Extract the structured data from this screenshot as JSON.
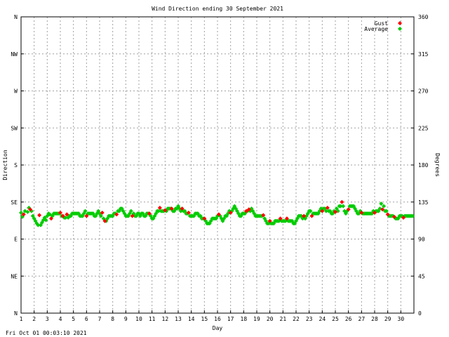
{
  "chart_data": {
    "type": "scatter",
    "title": "Wind Direction ending 30 September 2021",
    "xlabel": "Day",
    "ylabel_left": "Direction",
    "ylabel_right": "Degrees",
    "timestamp": "Fri Oct 01 00:03:10 2021",
    "xlim": [
      1,
      31
    ],
    "ylim": [
      0,
      360
    ],
    "x_ticks": [
      "1",
      "2",
      "3",
      "4",
      "5",
      "6",
      "7",
      "8",
      "9",
      "10",
      "11",
      "12",
      "13",
      "14",
      "15",
      "16",
      "17",
      "18",
      "19",
      "20",
      "21",
      "22",
      "23",
      "24",
      "25",
      "26",
      "27",
      "28",
      "29",
      "30"
    ],
    "y_ticks_left": [
      {
        "label": "N",
        "value": 0
      },
      {
        "label": "NE",
        "value": 45
      },
      {
        "label": "E",
        "value": 90
      },
      {
        "label": "SE",
        "value": 135
      },
      {
        "label": "S",
        "value": 180
      },
      {
        "label": "SW",
        "value": 225
      },
      {
        "label": "W",
        "value": 270
      },
      {
        "label": "NW",
        "value": 315
      },
      {
        "label": "N",
        "value": 360
      }
    ],
    "y_ticks_right": [
      {
        "label": "0",
        "value": 0
      },
      {
        "label": "45",
        "value": 45
      },
      {
        "label": "90",
        "value": 90
      },
      {
        "label": "135",
        "value": 135
      },
      {
        "label": "180",
        "value": 180
      },
      {
        "label": "225",
        "value": 225
      },
      {
        "label": "270",
        "value": 270
      },
      {
        "label": "315",
        "value": 315
      },
      {
        "label": "360",
        "value": 360
      }
    ],
    "grid": true,
    "legend_position": "top-right",
    "series": [
      {
        "name": "Gust",
        "color": "#ff0000",
        "points": [
          [
            1.2,
            120
          ],
          [
            1.7,
            126
          ],
          [
            2.4,
            119
          ],
          [
            3.3,
            115
          ],
          [
            4.0,
            122
          ],
          [
            4.2,
            118
          ],
          [
            4.5,
            120
          ],
          [
            6.0,
            118
          ],
          [
            7.2,
            122
          ],
          [
            7.4,
            112
          ],
          [
            8.3,
            120
          ],
          [
            9.5,
            118
          ],
          [
            10.8,
            121
          ],
          [
            11.6,
            128
          ],
          [
            12.0,
            125
          ],
          [
            12.5,
            127
          ],
          [
            13.3,
            127
          ],
          [
            13.8,
            122
          ],
          [
            15.0,
            115
          ],
          [
            16.1,
            120
          ],
          [
            17.0,
            122
          ],
          [
            18.2,
            124
          ],
          [
            18.4,
            126
          ],
          [
            19.5,
            119
          ],
          [
            20.0,
            112
          ],
          [
            20.8,
            115
          ],
          [
            21.3,
            115
          ],
          [
            22.6,
            118
          ],
          [
            23.2,
            118
          ],
          [
            24.0,
            124
          ],
          [
            24.4,
            128
          ],
          [
            25.0,
            123
          ],
          [
            25.5,
            135
          ],
          [
            26.0,
            126
          ],
          [
            27.0,
            122
          ],
          [
            28.0,
            122
          ],
          [
            28.6,
            126
          ],
          [
            29.0,
            120
          ],
          [
            29.5,
            117
          ],
          [
            30.2,
            116
          ]
        ]
      },
      {
        "name": "Average",
        "color": "#00cc00",
        "points": [
          [
            1.0,
            122
          ],
          [
            1.1,
            117
          ],
          [
            1.3,
            124
          ],
          [
            1.5,
            123
          ],
          [
            1.6,
            128
          ],
          [
            1.8,
            124
          ],
          [
            1.9,
            118
          ],
          [
            2.0,
            115
          ],
          [
            2.1,
            112
          ],
          [
            2.2,
            109
          ],
          [
            2.3,
            107
          ],
          [
            2.5,
            107
          ],
          [
            2.6,
            110
          ],
          [
            2.7,
            113
          ],
          [
            2.8,
            116
          ],
          [
            2.9,
            113
          ],
          [
            3.0,
            118
          ],
          [
            3.1,
            121
          ],
          [
            3.2,
            120
          ],
          [
            3.4,
            118
          ],
          [
            3.5,
            121
          ],
          [
            3.6,
            121
          ],
          [
            3.7,
            121
          ],
          [
            3.8,
            121
          ],
          [
            3.9,
            121
          ],
          [
            4.1,
            118
          ],
          [
            4.3,
            116
          ],
          [
            4.4,
            116
          ],
          [
            4.6,
            116
          ],
          [
            4.7,
            118
          ],
          [
            4.8,
            118
          ],
          [
            4.9,
            121
          ],
          [
            5.0,
            121
          ],
          [
            5.1,
            121
          ],
          [
            5.2,
            121
          ],
          [
            5.3,
            121
          ],
          [
            5.4,
            121
          ],
          [
            5.5,
            118
          ],
          [
            5.6,
            118
          ],
          [
            5.7,
            118
          ],
          [
            5.8,
            121
          ],
          [
            5.9,
            124
          ],
          [
            6.1,
            121
          ],
          [
            6.2,
            121
          ],
          [
            6.3,
            121
          ],
          [
            6.4,
            121
          ],
          [
            6.5,
            121
          ],
          [
            6.6,
            118
          ],
          [
            6.7,
            118
          ],
          [
            6.8,
            121
          ],
          [
            6.9,
            124
          ],
          [
            7.0,
            121
          ],
          [
            7.1,
            118
          ],
          [
            7.3,
            115
          ],
          [
            7.5,
            112
          ],
          [
            7.6,
            115
          ],
          [
            7.7,
            118
          ],
          [
            7.8,
            118
          ],
          [
            7.9,
            118
          ],
          [
            8.0,
            118
          ],
          [
            8.1,
            121
          ],
          [
            8.2,
            121
          ],
          [
            8.4,
            124
          ],
          [
            8.5,
            124
          ],
          [
            8.6,
            127
          ],
          [
            8.7,
            127
          ],
          [
            8.8,
            124
          ],
          [
            8.9,
            121
          ],
          [
            9.0,
            118
          ],
          [
            9.1,
            118
          ],
          [
            9.2,
            118
          ],
          [
            9.3,
            121
          ],
          [
            9.4,
            124
          ],
          [
            9.6,
            121
          ],
          [
            9.7,
            118
          ],
          [
            9.8,
            118
          ],
          [
            9.9,
            121
          ],
          [
            10.0,
            121
          ],
          [
            10.1,
            118
          ],
          [
            10.2,
            121
          ],
          [
            10.3,
            121
          ],
          [
            10.4,
            118
          ],
          [
            10.5,
            118
          ],
          [
            10.6,
            121
          ],
          [
            10.7,
            121
          ],
          [
            10.9,
            118
          ],
          [
            11.0,
            115
          ],
          [
            11.1,
            115
          ],
          [
            11.2,
            118
          ],
          [
            11.3,
            121
          ],
          [
            11.4,
            124
          ],
          [
            11.5,
            124
          ],
          [
            11.7,
            124
          ],
          [
            11.8,
            124
          ],
          [
            11.9,
            124
          ],
          [
            12.1,
            124
          ],
          [
            12.2,
            127
          ],
          [
            12.3,
            127
          ],
          [
            12.4,
            127
          ],
          [
            12.6,
            124
          ],
          [
            12.7,
            124
          ],
          [
            12.8,
            127
          ],
          [
            12.9,
            127
          ],
          [
            13.0,
            130
          ],
          [
            13.1,
            127
          ],
          [
            13.2,
            124
          ],
          [
            13.4,
            124
          ],
          [
            13.5,
            124
          ],
          [
            13.6,
            121
          ],
          [
            13.7,
            121
          ],
          [
            13.9,
            118
          ],
          [
            14.0,
            118
          ],
          [
            14.1,
            118
          ],
          [
            14.2,
            118
          ],
          [
            14.3,
            121
          ],
          [
            14.4,
            121
          ],
          [
            14.5,
            121
          ],
          [
            14.6,
            118
          ],
          [
            14.7,
            118
          ],
          [
            14.8,
            115
          ],
          [
            14.9,
            115
          ],
          [
            15.1,
            112
          ],
          [
            15.2,
            109
          ],
          [
            15.3,
            109
          ],
          [
            15.4,
            109
          ],
          [
            15.5,
            112
          ],
          [
            15.6,
            115
          ],
          [
            15.7,
            115
          ],
          [
            15.8,
            115
          ],
          [
            15.9,
            115
          ],
          [
            16.0,
            118
          ],
          [
            16.2,
            118
          ],
          [
            16.3,
            115
          ],
          [
            16.4,
            112
          ],
          [
            16.5,
            115
          ],
          [
            16.6,
            118
          ],
          [
            16.7,
            118
          ],
          [
            16.8,
            121
          ],
          [
            16.9,
            124
          ],
          [
            17.1,
            124
          ],
          [
            17.2,
            127
          ],
          [
            17.3,
            130
          ],
          [
            17.4,
            127
          ],
          [
            17.5,
            124
          ],
          [
            17.6,
            121
          ],
          [
            17.7,
            118
          ],
          [
            17.8,
            118
          ],
          [
            17.9,
            121
          ],
          [
            18.0,
            121
          ],
          [
            18.1,
            121
          ],
          [
            18.3,
            124
          ],
          [
            18.5,
            124
          ],
          [
            18.6,
            127
          ],
          [
            18.7,
            124
          ],
          [
            18.8,
            121
          ],
          [
            18.9,
            118
          ],
          [
            19.0,
            118
          ],
          [
            19.1,
            118
          ],
          [
            19.2,
            118
          ],
          [
            19.3,
            118
          ],
          [
            19.4,
            118
          ],
          [
            19.6,
            115
          ],
          [
            19.7,
            112
          ],
          [
            19.8,
            109
          ],
          [
            19.9,
            109
          ],
          [
            20.1,
            109
          ],
          [
            20.2,
            109
          ],
          [
            20.3,
            109
          ],
          [
            20.4,
            112
          ],
          [
            20.5,
            112
          ],
          [
            20.6,
            112
          ],
          [
            20.7,
            112
          ],
          [
            20.9,
            112
          ],
          [
            21.0,
            112
          ],
          [
            21.1,
            112
          ],
          [
            21.2,
            112
          ],
          [
            21.4,
            112
          ],
          [
            21.5,
            112
          ],
          [
            21.6,
            112
          ],
          [
            21.7,
            112
          ],
          [
            21.8,
            109
          ],
          [
            21.9,
            109
          ],
          [
            22.0,
            112
          ],
          [
            22.1,
            115
          ],
          [
            22.2,
            118
          ],
          [
            22.3,
            118
          ],
          [
            22.4,
            118
          ],
          [
            22.5,
            115
          ],
          [
            22.7,
            115
          ],
          [
            22.8,
            118
          ],
          [
            22.9,
            121
          ],
          [
            23.0,
            124
          ],
          [
            23.1,
            124
          ],
          [
            23.3,
            121
          ],
          [
            23.4,
            121
          ],
          [
            23.5,
            121
          ],
          [
            23.6,
            121
          ],
          [
            23.7,
            121
          ],
          [
            23.8,
            124
          ],
          [
            23.9,
            127
          ],
          [
            24.1,
            127
          ],
          [
            24.2,
            127
          ],
          [
            24.3,
            124
          ],
          [
            24.5,
            124
          ],
          [
            24.6,
            124
          ],
          [
            24.7,
            121
          ],
          [
            24.8,
            121
          ],
          [
            24.9,
            124
          ],
          [
            25.1,
            127
          ],
          [
            25.2,
            124
          ],
          [
            25.3,
            130
          ],
          [
            25.4,
            130
          ],
          [
            25.6,
            130
          ],
          [
            25.7,
            124
          ],
          [
            25.8,
            121
          ],
          [
            25.9,
            124
          ],
          [
            26.1,
            130
          ],
          [
            26.2,
            130
          ],
          [
            26.3,
            130
          ],
          [
            26.4,
            130
          ],
          [
            26.5,
            127
          ],
          [
            26.6,
            124
          ],
          [
            26.7,
            121
          ],
          [
            26.8,
            121
          ],
          [
            26.9,
            124
          ],
          [
            27.1,
            121
          ],
          [
            27.2,
            121
          ],
          [
            27.3,
            121
          ],
          [
            27.4,
            121
          ],
          [
            27.5,
            121
          ],
          [
            27.6,
            121
          ],
          [
            27.7,
            121
          ],
          [
            27.8,
            121
          ],
          [
            27.9,
            124
          ],
          [
            28.1,
            124
          ],
          [
            28.2,
            124
          ],
          [
            28.3,
            124
          ],
          [
            28.4,
            127
          ],
          [
            28.5,
            133
          ],
          [
            28.7,
            130
          ],
          [
            28.8,
            124
          ],
          [
            28.9,
            124
          ],
          [
            29.1,
            118
          ],
          [
            29.2,
            118
          ],
          [
            29.3,
            118
          ],
          [
            29.4,
            118
          ],
          [
            29.6,
            115
          ],
          [
            29.7,
            115
          ],
          [
            29.8,
            115
          ],
          [
            29.9,
            118
          ],
          [
            30.0,
            118
          ],
          [
            30.1,
            118
          ],
          [
            30.3,
            118
          ],
          [
            30.4,
            118
          ],
          [
            30.5,
            118
          ],
          [
            30.6,
            118
          ],
          [
            30.7,
            118
          ],
          [
            30.8,
            118
          ],
          [
            30.9,
            118
          ]
        ]
      }
    ]
  }
}
